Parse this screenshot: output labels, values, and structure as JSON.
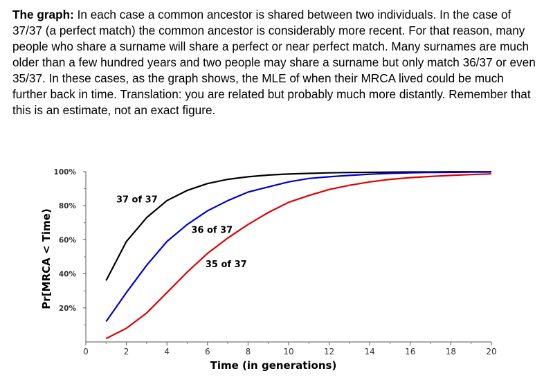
{
  "caption": {
    "lead": "The graph:",
    "body": " In each case a common ancestor is shared between two individuals. In the case of 37/37 (a perfect match) the common ancestor is considerably more recent.  For that reason, many people who share a surname will share a perfect or near perfect match.  Many surnames are much older than a few hundred years and two people may share a surname but only match 36/37 or even 35/37. In these cases, as the graph shows, the MLE of when their MRCA lived could be much further back in time.  Translation: you are related but probably much more distantly.  Remember that this is an estimate, not an exact figure."
  },
  "chart_data": {
    "type": "line",
    "xlabel": "Time (in generations)",
    "ylabel": "Pr[MRCA < Time)",
    "xlim": [
      0,
      20
    ],
    "ylim": [
      0,
      100
    ],
    "x_ticks": [
      "0",
      "2",
      "4",
      "6",
      "8",
      "10",
      "12",
      "14",
      "16",
      "18",
      "20"
    ],
    "y_ticks": [
      {
        "value": 20,
        "label": "20%"
      },
      {
        "value": 40,
        "label": "40%"
      },
      {
        "value": 60,
        "label": "60%"
      },
      {
        "value": 80,
        "label": "80%"
      },
      {
        "value": 100,
        "label": "100%"
      }
    ],
    "grid": false,
    "series": [
      {
        "name": "37 of 37",
        "color": "#000000",
        "x": [
          1,
          2,
          3,
          4,
          5,
          6,
          7,
          8,
          9,
          10,
          11,
          12,
          13,
          14,
          15,
          16,
          17,
          18,
          19,
          20
        ],
        "y": [
          36,
          59,
          73,
          83,
          89,
          93,
          95.5,
          97,
          98,
          98.6,
          99,
          99.3,
          99.5,
          99.6,
          99.7,
          99.8,
          99.8,
          99.9,
          99.9,
          99.9
        ]
      },
      {
        "name": "36 of 37",
        "color": "#0000cc",
        "x": [
          1,
          2,
          3,
          4,
          5,
          6,
          7,
          8,
          9,
          10,
          11,
          12,
          13,
          14,
          15,
          16,
          17,
          18,
          19,
          20
        ],
        "y": [
          12,
          29,
          45,
          59,
          69,
          77,
          83,
          88,
          91,
          94,
          96,
          97,
          97.8,
          98.5,
          99,
          99.3,
          99.5,
          99.6,
          99.7,
          99.8
        ]
      },
      {
        "name": "35 of 37",
        "color": "#dd0000",
        "x": [
          1,
          2,
          3,
          4,
          5,
          6,
          7,
          8,
          9,
          10,
          11,
          12,
          13,
          14,
          15,
          16,
          17,
          18,
          19,
          20
        ],
        "y": [
          2,
          8,
          17,
          29,
          41,
          52,
          61,
          69,
          76,
          82,
          86,
          89.5,
          92,
          94,
          95.5,
          96.5,
          97.2,
          97.8,
          98.3,
          98.7
        ]
      }
    ]
  }
}
